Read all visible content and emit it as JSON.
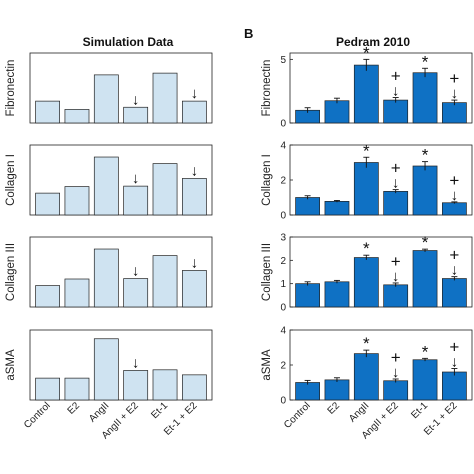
{
  "panel_b_label": "B",
  "colors": {
    "simulation_bar": "#cfe3f1",
    "experiment_bar": "#0f71c4",
    "bar_edge": "#222222",
    "axis": "#222222"
  },
  "chart_data": [
    {
      "type": "bar",
      "title": "Simulation Data",
      "categories": [
        "Control",
        "E2",
        "AngII",
        "AngII + E2",
        "Et-1",
        "Et-1 + E2"
      ],
      "subplots": [
        {
          "ylabel": "Fibronectin",
          "values": [
            1.0,
            0.62,
            2.2,
            0.72,
            2.28,
            1.0
          ],
          "annotations": [
            "",
            "",
            "",
            "↓",
            "",
            "↓"
          ]
        },
        {
          "ylabel": "Collagen I",
          "values": [
            1.0,
            1.3,
            2.65,
            1.32,
            2.35,
            1.67
          ],
          "annotations": [
            "",
            "",
            "",
            "↓",
            "",
            "↓"
          ]
        },
        {
          "ylabel": "Collagen III",
          "values": [
            0.98,
            1.28,
            2.65,
            1.3,
            2.35,
            1.67
          ],
          "annotations": [
            "",
            "",
            "",
            "↓",
            "",
            "↓"
          ]
        },
        {
          "ylabel": "aSMA",
          "values": [
            1.0,
            1.0,
            2.8,
            1.35,
            1.38,
            1.15
          ],
          "annotations": [
            "",
            "",
            "",
            "↓",
            "",
            ""
          ]
        }
      ]
    },
    {
      "type": "bar",
      "title": "Pedram 2010",
      "categories": [
        "Control",
        "E2",
        "AngII",
        "AngII + E2",
        "Et-1",
        "Et-1 + E2"
      ],
      "subplots": [
        {
          "ylabel": "Fibronectin",
          "ylim": [
            0,
            5.5
          ],
          "yticks": [
            "0",
            "5"
          ],
          "ytick_values": [
            0,
            5
          ],
          "values": [
            1.0,
            1.75,
            4.55,
            1.8,
            3.95,
            1.6
          ],
          "errors": [
            0.2,
            0.2,
            0.45,
            0.2,
            0.35,
            0.2
          ],
          "annotations": [
            "",
            "",
            "*",
            "+↓",
            "*",
            "+↓"
          ]
        },
        {
          "ylabel": "Collagen I",
          "ylim": [
            0,
            4
          ],
          "yticks": [
            "0",
            "2",
            "4"
          ],
          "ytick_values": [
            0,
            2,
            4
          ],
          "values": [
            1.0,
            0.78,
            3.0,
            1.35,
            2.8,
            0.7
          ],
          "errors": [
            0.1,
            0.05,
            0.3,
            0.1,
            0.25,
            0.05
          ],
          "annotations": [
            "",
            "",
            "*",
            "+↓",
            "*",
            "+↓"
          ]
        },
        {
          "ylabel": "Collagen III",
          "ylim": [
            0,
            3
          ],
          "yticks": [
            "0",
            "1",
            "2",
            "3"
          ],
          "ytick_values": [
            0,
            1,
            2,
            3
          ],
          "values": [
            1.0,
            1.08,
            2.12,
            0.95,
            2.42,
            1.22
          ],
          "errors": [
            0.08,
            0.06,
            0.1,
            0.08,
            0.06,
            0.08
          ],
          "annotations": [
            "",
            "",
            "*",
            "+↓",
            "*",
            "+↓"
          ]
        },
        {
          "ylabel": "aSMA",
          "ylim": [
            0,
            4
          ],
          "yticks": [
            "0",
            "2",
            "4"
          ],
          "ytick_values": [
            0,
            2,
            4
          ],
          "values": [
            1.0,
            1.15,
            2.65,
            1.1,
            2.3,
            1.6
          ],
          "errors": [
            0.12,
            0.12,
            0.2,
            0.1,
            0.08,
            0.2
          ],
          "annotations": [
            "",
            "",
            "*",
            "+↓",
            "*",
            "+↓"
          ]
        }
      ]
    }
  ]
}
